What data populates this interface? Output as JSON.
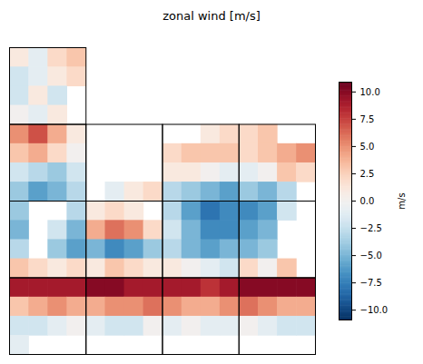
{
  "chart_data": {
    "type": "heatmap",
    "title": "zonal wind [m/s]",
    "tick_labels": false,
    "z": [
      [
        1,
        -1,
        2,
        3,
        null,
        null,
        null,
        null,
        null,
        null,
        null,
        null,
        null,
        null,
        null,
        null
      ],
      [
        -2,
        -1,
        1,
        2,
        null,
        null,
        null,
        null,
        null,
        null,
        null,
        null,
        null,
        null,
        null,
        null
      ],
      [
        -2,
        1,
        -2,
        null,
        null,
        null,
        null,
        null,
        null,
        null,
        null,
        null,
        null,
        null,
        null,
        null
      ],
      [
        0,
        -1,
        1,
        null,
        null,
        null,
        null,
        null,
        null,
        null,
        null,
        null,
        null,
        null,
        null,
        null
      ],
      [
        5,
        7,
        4,
        1,
        null,
        null,
        null,
        null,
        null,
        null,
        1,
        2,
        2,
        3,
        null,
        null
      ],
      [
        3,
        4,
        2,
        0,
        null,
        null,
        null,
        null,
        2,
        3,
        3,
        3,
        2,
        3,
        4,
        5
      ],
      [
        -2,
        -3,
        -4,
        -2,
        null,
        null,
        null,
        null,
        1,
        1,
        0,
        -1,
        -1,
        0,
        3,
        2
      ],
      [
        -4,
        -6,
        -5,
        -3,
        null,
        -1,
        1,
        2,
        -3,
        -4,
        -5,
        -6,
        -4,
        -5,
        -3,
        null
      ],
      [
        -4,
        null,
        null,
        -3,
        1,
        2,
        1,
        null,
        -3,
        -6,
        -8,
        -7,
        -7,
        -6,
        -2,
        null
      ],
      [
        -5,
        null,
        -2,
        -5,
        4,
        6,
        5,
        2,
        -2,
        -5,
        -7,
        -7,
        -6,
        -5,
        null,
        null
      ],
      [
        -3,
        null,
        -4,
        -6,
        -5,
        -7,
        -6,
        -4,
        -3,
        -5,
        -6,
        -5,
        -5,
        -4,
        null,
        null
      ],
      [
        3,
        2,
        1,
        2,
        1,
        3,
        2,
        1,
        1,
        0,
        -1,
        -2,
        2,
        0,
        3,
        null
      ],
      [
        9,
        9,
        9,
        9,
        10,
        10,
        9,
        9,
        9,
        9,
        8,
        9,
        10,
        10,
        10,
        10
      ],
      [
        3,
        4,
        5,
        4,
        4,
        5,
        5,
        6,
        5,
        4,
        4,
        5,
        6,
        5,
        4,
        4
      ],
      [
        -2,
        -2,
        -1,
        0,
        -1,
        -2,
        -2,
        0,
        -1,
        0,
        -1,
        -1,
        0,
        -1,
        -2,
        -2
      ],
      [
        -1,
        null,
        null,
        null,
        null,
        null,
        null,
        null,
        null,
        null,
        null,
        null,
        null,
        null,
        null,
        null
      ]
    ],
    "colorbar_label": "m/s",
    "colorbar_range": [
      -10.9,
      10.9
    ],
    "colorbar_ticks": [
      {
        "value": -10,
        "label": "−10.0"
      },
      {
        "value": -7.5,
        "label": "−7.5"
      },
      {
        "value": -5,
        "label": "−5.0"
      },
      {
        "value": -2.5,
        "label": "−2.5"
      },
      {
        "value": 0,
        "label": "0.0"
      },
      {
        "value": 2.5,
        "label": "2.5"
      },
      {
        "value": 5,
        "label": "5.0"
      },
      {
        "value": 7.5,
        "label": "7.5"
      },
      {
        "value": 10,
        "label": "10.0"
      }
    ]
  }
}
